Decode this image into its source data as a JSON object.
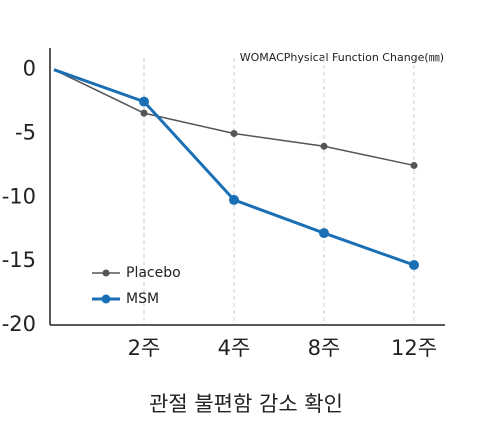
{
  "chart_data": {
    "type": "line",
    "annotation": "WOMACPhysical Function Change(㎜)",
    "caption": "관절 불편함 감소 확인",
    "categories": [
      null,
      "2주",
      "4주",
      "8주",
      "12주"
    ],
    "series": [
      {
        "name": "Placebo",
        "color": "#555555",
        "values": [
          0,
          -3.4,
          -5,
          -6,
          -7.5
        ]
      },
      {
        "name": "MSM",
        "color": "#1a6fb5",
        "values": [
          0,
          -2.5,
          -10.2,
          -12.8,
          -15.3
        ]
      }
    ],
    "ylim": [
      -20,
      1.7
    ],
    "yticks": [
      0,
      -5,
      -10,
      -15,
      -20
    ],
    "grid": true,
    "legend": "lower left"
  }
}
